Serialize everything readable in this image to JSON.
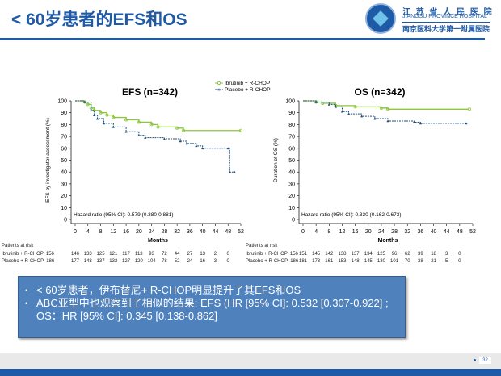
{
  "header": {
    "title": "< 60岁患者的EFS和OS",
    "logo_cn": "江 苏 省 人 民 医 院",
    "logo_en": "JIANGSU PROVINCE HOSPITAL",
    "logo_cn2": "南京医科大学第一附属医院"
  },
  "chart_data": [
    {
      "type": "line",
      "title": "EFS (n=342)",
      "xlabel": "Months",
      "ylabel": "EFS by investigator assessment (%)",
      "xlim": [
        0,
        52
      ],
      "ylim": [
        0,
        100
      ],
      "xticks": [
        0,
        4,
        8,
        12,
        16,
        20,
        24,
        28,
        32,
        36,
        40,
        44,
        48,
        52
      ],
      "yticks": [
        0,
        10,
        20,
        30,
        40,
        50,
        60,
        70,
        80,
        90,
        100
      ],
      "legend": [
        "Ibrutinib + R-CHOP",
        "Placebo + R-CHOP"
      ],
      "legend_position": "top-right",
      "annotation": "Hazard ratio (95% CI): 0.579 (0.380-0.881)",
      "series": [
        {
          "name": "Ibrutinib + R-CHOP",
          "color": "#8dc63f",
          "x": [
            0,
            3,
            4,
            5,
            6,
            8,
            10,
            12,
            16,
            20,
            24,
            26,
            32,
            34,
            52
          ],
          "y": [
            100,
            99,
            97,
            94,
            92,
            90,
            88,
            86,
            84,
            82,
            80,
            78,
            77,
            75,
            75
          ]
        },
        {
          "name": "Placebo + R-CHOP",
          "color": "#1f4e79",
          "x": [
            0,
            3,
            5,
            6,
            7,
            9,
            12,
            16,
            20,
            22,
            28,
            33,
            35,
            38,
            40,
            48,
            48.5,
            50
          ],
          "y": [
            100,
            99,
            92,
            88,
            85,
            81,
            78,
            74,
            71,
            69,
            68,
            66,
            64,
            62,
            60,
            60,
            40,
            40
          ]
        }
      ],
      "risk_table": {
        "header": "Patients at risk",
        "rows": [
          {
            "label": "Ibrutinib + R-CHOP",
            "n": "156",
            "values": [
              "146",
              "133",
              "125",
              "121",
              "117",
              "113",
              "93",
              "72",
              "44",
              "27",
              "13",
              "2",
              "0"
            ]
          },
          {
            "label": "Placebo + R-CHOP",
            "n": "186",
            "values": [
              "177",
              "148",
              "137",
              "132",
              "127",
              "120",
              "104",
              "78",
              "52",
              "24",
              "16",
              "3",
              "0"
            ]
          }
        ]
      }
    },
    {
      "type": "line",
      "title": "OS (n=342)",
      "xlabel": "Months",
      "ylabel": "Duration of OS (%)",
      "xlim": [
        0,
        52
      ],
      "ylim": [
        0,
        100
      ],
      "xticks": [
        0,
        4,
        8,
        12,
        16,
        20,
        24,
        28,
        32,
        36,
        40,
        44,
        48,
        52
      ],
      "yticks": [
        0,
        10,
        20,
        30,
        40,
        50,
        60,
        70,
        80,
        90,
        100
      ],
      "annotation": "Hazard ratio (95% CI): 0.330 (0.162-0.673)",
      "series": [
        {
          "name": "Ibrutinib + R-CHOP",
          "color": "#8dc63f",
          "x": [
            0,
            4,
            6,
            10,
            16,
            24,
            26,
            51
          ],
          "y": [
            100,
            99,
            98,
            96,
            95,
            94,
            93,
            93
          ]
        },
        {
          "name": "Placebo + R-CHOP",
          "color": "#1f4e79",
          "x": [
            0,
            4,
            8,
            10,
            12,
            14,
            18,
            22,
            26,
            34,
            36,
            50
          ],
          "y": [
            100,
            99,
            97,
            95,
            91,
            89,
            87,
            85,
            83,
            82,
            81,
            81
          ]
        }
      ],
      "risk_table": {
        "header": "Patients at risk",
        "rows": [
          {
            "label": "Ibrutinib + R-CHOP",
            "n": "156",
            "values": [
              "151",
              "145",
              "142",
              "138",
              "137",
              "134",
              "125",
              "96",
              "62",
              "39",
              "18",
              "3",
              "0"
            ]
          },
          {
            "label": "Placebo + R-CHOP",
            "n": "186",
            "values": [
              "181",
              "173",
              "161",
              "153",
              "148",
              "145",
              "130",
              "101",
              "70",
              "38",
              "21",
              "5",
              "0"
            ]
          }
        ]
      }
    }
  ],
  "summary": {
    "bullets": [
      "< 60岁患者，伊布替尼+ R-CHOP明显提升了其EFS和OS",
      "ABC亚型中也观察到了相似的结果: EFS (HR [95% CI]: 0.532 [0.307-0.922] ; OS：HR [95% CI]: 0.345 [0.138-0.862]"
    ]
  },
  "footer": {
    "page": "32"
  }
}
